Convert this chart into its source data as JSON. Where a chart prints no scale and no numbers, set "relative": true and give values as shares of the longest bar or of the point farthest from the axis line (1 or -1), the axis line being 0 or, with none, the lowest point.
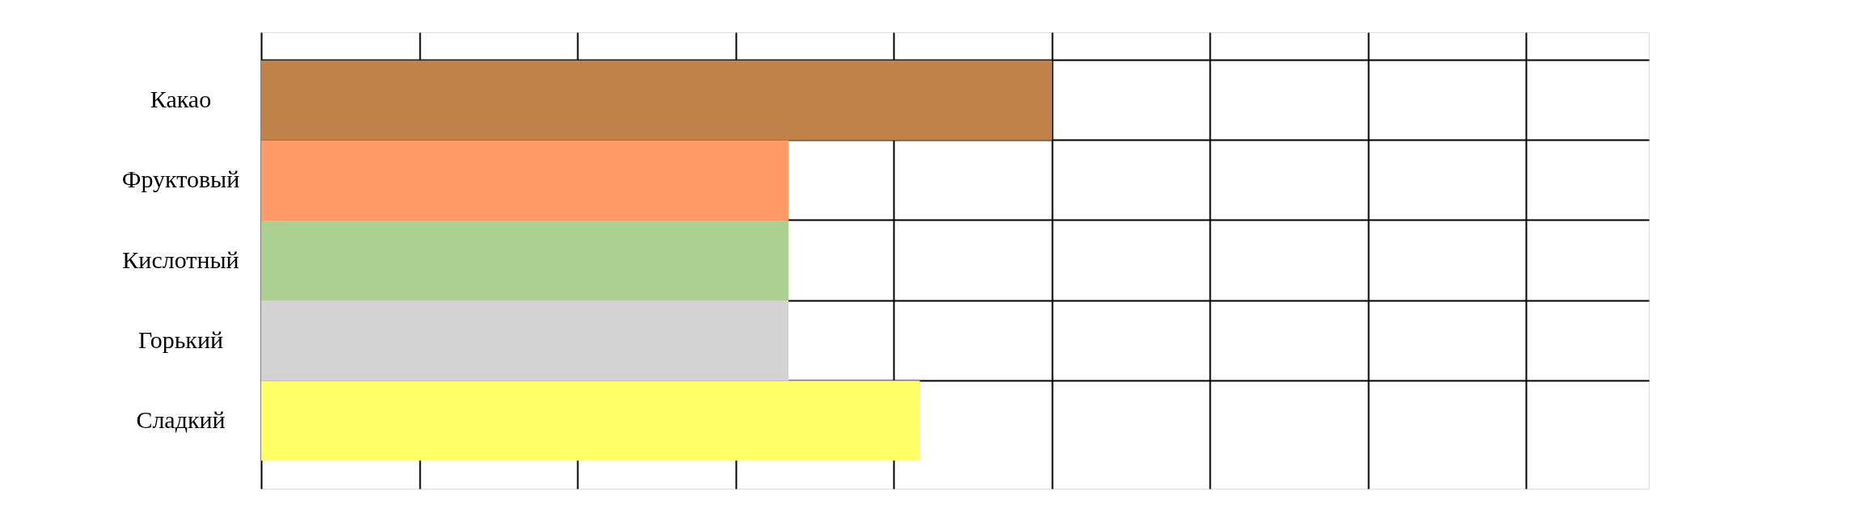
{
  "chart_data": {
    "type": "bar",
    "orientation": "horizontal",
    "relative": true,
    "categories": [
      "Какао",
      "Фруктовый",
      "Кислотный",
      "Горький",
      "Сладкий"
    ],
    "values": [
      1,
      0.667,
      0.667,
      0.667,
      0.833
    ],
    "colors": [
      "#c08248",
      "#ff9966",
      "#acd08f",
      "#d3d3d3",
      "#ffff66"
    ],
    "grid": true
  }
}
